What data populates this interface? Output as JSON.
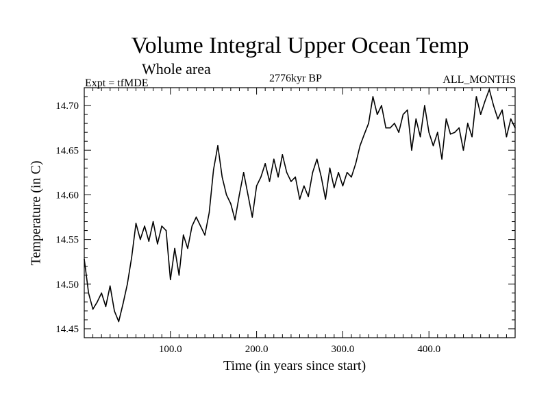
{
  "chart_data": {
    "type": "line",
    "title": "Volume Integral Upper Ocean Temp",
    "subtitle": "Whole area",
    "experiment": "Expt = tfMDE",
    "period": "2776kyr BP",
    "months": "ALL_MONTHS",
    "xlabel": "Time (in years since start)",
    "ylabel": "Temperature (in C)",
    "xlim": [
      0,
      500
    ],
    "ylim": [
      14.44,
      14.72
    ],
    "xticks": [
      100,
      200,
      300,
      400
    ],
    "xtick_labels": [
      "100.0",
      "200.0",
      "300.0",
      "400.0"
    ],
    "yticks": [
      14.45,
      14.5,
      14.55,
      14.6,
      14.65,
      14.7
    ],
    "ytick_labels": [
      "14.45",
      "14.50",
      "14.55",
      "14.60",
      "14.65",
      "14.70"
    ],
    "grid": false,
    "series": [
      {
        "name": "Volume Integral Upper Ocean Temp",
        "x": [
          0,
          5,
          10,
          15,
          20,
          25,
          30,
          35,
          40,
          45,
          50,
          55,
          60,
          65,
          70,
          75,
          80,
          85,
          90,
          95,
          100,
          105,
          110,
          115,
          120,
          125,
          130,
          135,
          140,
          145,
          150,
          155,
          160,
          165,
          170,
          175,
          180,
          185,
          190,
          195,
          200,
          205,
          210,
          215,
          220,
          225,
          230,
          235,
          240,
          245,
          250,
          255,
          260,
          265,
          270,
          275,
          280,
          285,
          290,
          295,
          300,
          305,
          310,
          315,
          320,
          325,
          330,
          335,
          340,
          345,
          350,
          355,
          360,
          365,
          370,
          375,
          380,
          385,
          390,
          395,
          400,
          405,
          410,
          415,
          420,
          425,
          430,
          435,
          440,
          445,
          450,
          455,
          460,
          465,
          470,
          475,
          480,
          485,
          490,
          495,
          500
        ],
        "values": [
          14.528,
          14.49,
          14.472,
          14.48,
          14.49,
          14.475,
          14.498,
          14.47,
          14.458,
          14.478,
          14.5,
          14.53,
          14.568,
          14.55,
          14.565,
          14.548,
          14.57,
          14.545,
          14.565,
          14.56,
          14.505,
          14.54,
          14.51,
          14.555,
          14.54,
          14.565,
          14.575,
          14.565,
          14.555,
          14.58,
          14.628,
          14.655,
          14.62,
          14.6,
          14.59,
          14.572,
          14.6,
          14.625,
          14.6,
          14.575,
          14.61,
          14.62,
          14.635,
          14.615,
          14.64,
          14.62,
          14.645,
          14.625,
          14.615,
          14.62,
          14.595,
          14.61,
          14.598,
          14.625,
          14.64,
          14.62,
          14.595,
          14.63,
          14.608,
          14.625,
          14.61,
          14.625,
          14.62,
          14.635,
          14.655,
          14.668,
          14.68,
          14.71,
          14.69,
          14.7,
          14.675,
          14.675,
          14.68,
          14.67,
          14.69,
          14.695,
          14.65,
          14.685,
          14.665,
          14.7,
          14.67,
          14.655,
          14.67,
          14.64,
          14.685,
          14.668,
          14.67,
          14.675,
          14.65,
          14.68,
          14.665,
          14.71,
          14.69,
          14.705,
          14.718,
          14.7,
          14.685,
          14.695,
          14.665,
          14.685,
          14.675
        ]
      }
    ]
  }
}
